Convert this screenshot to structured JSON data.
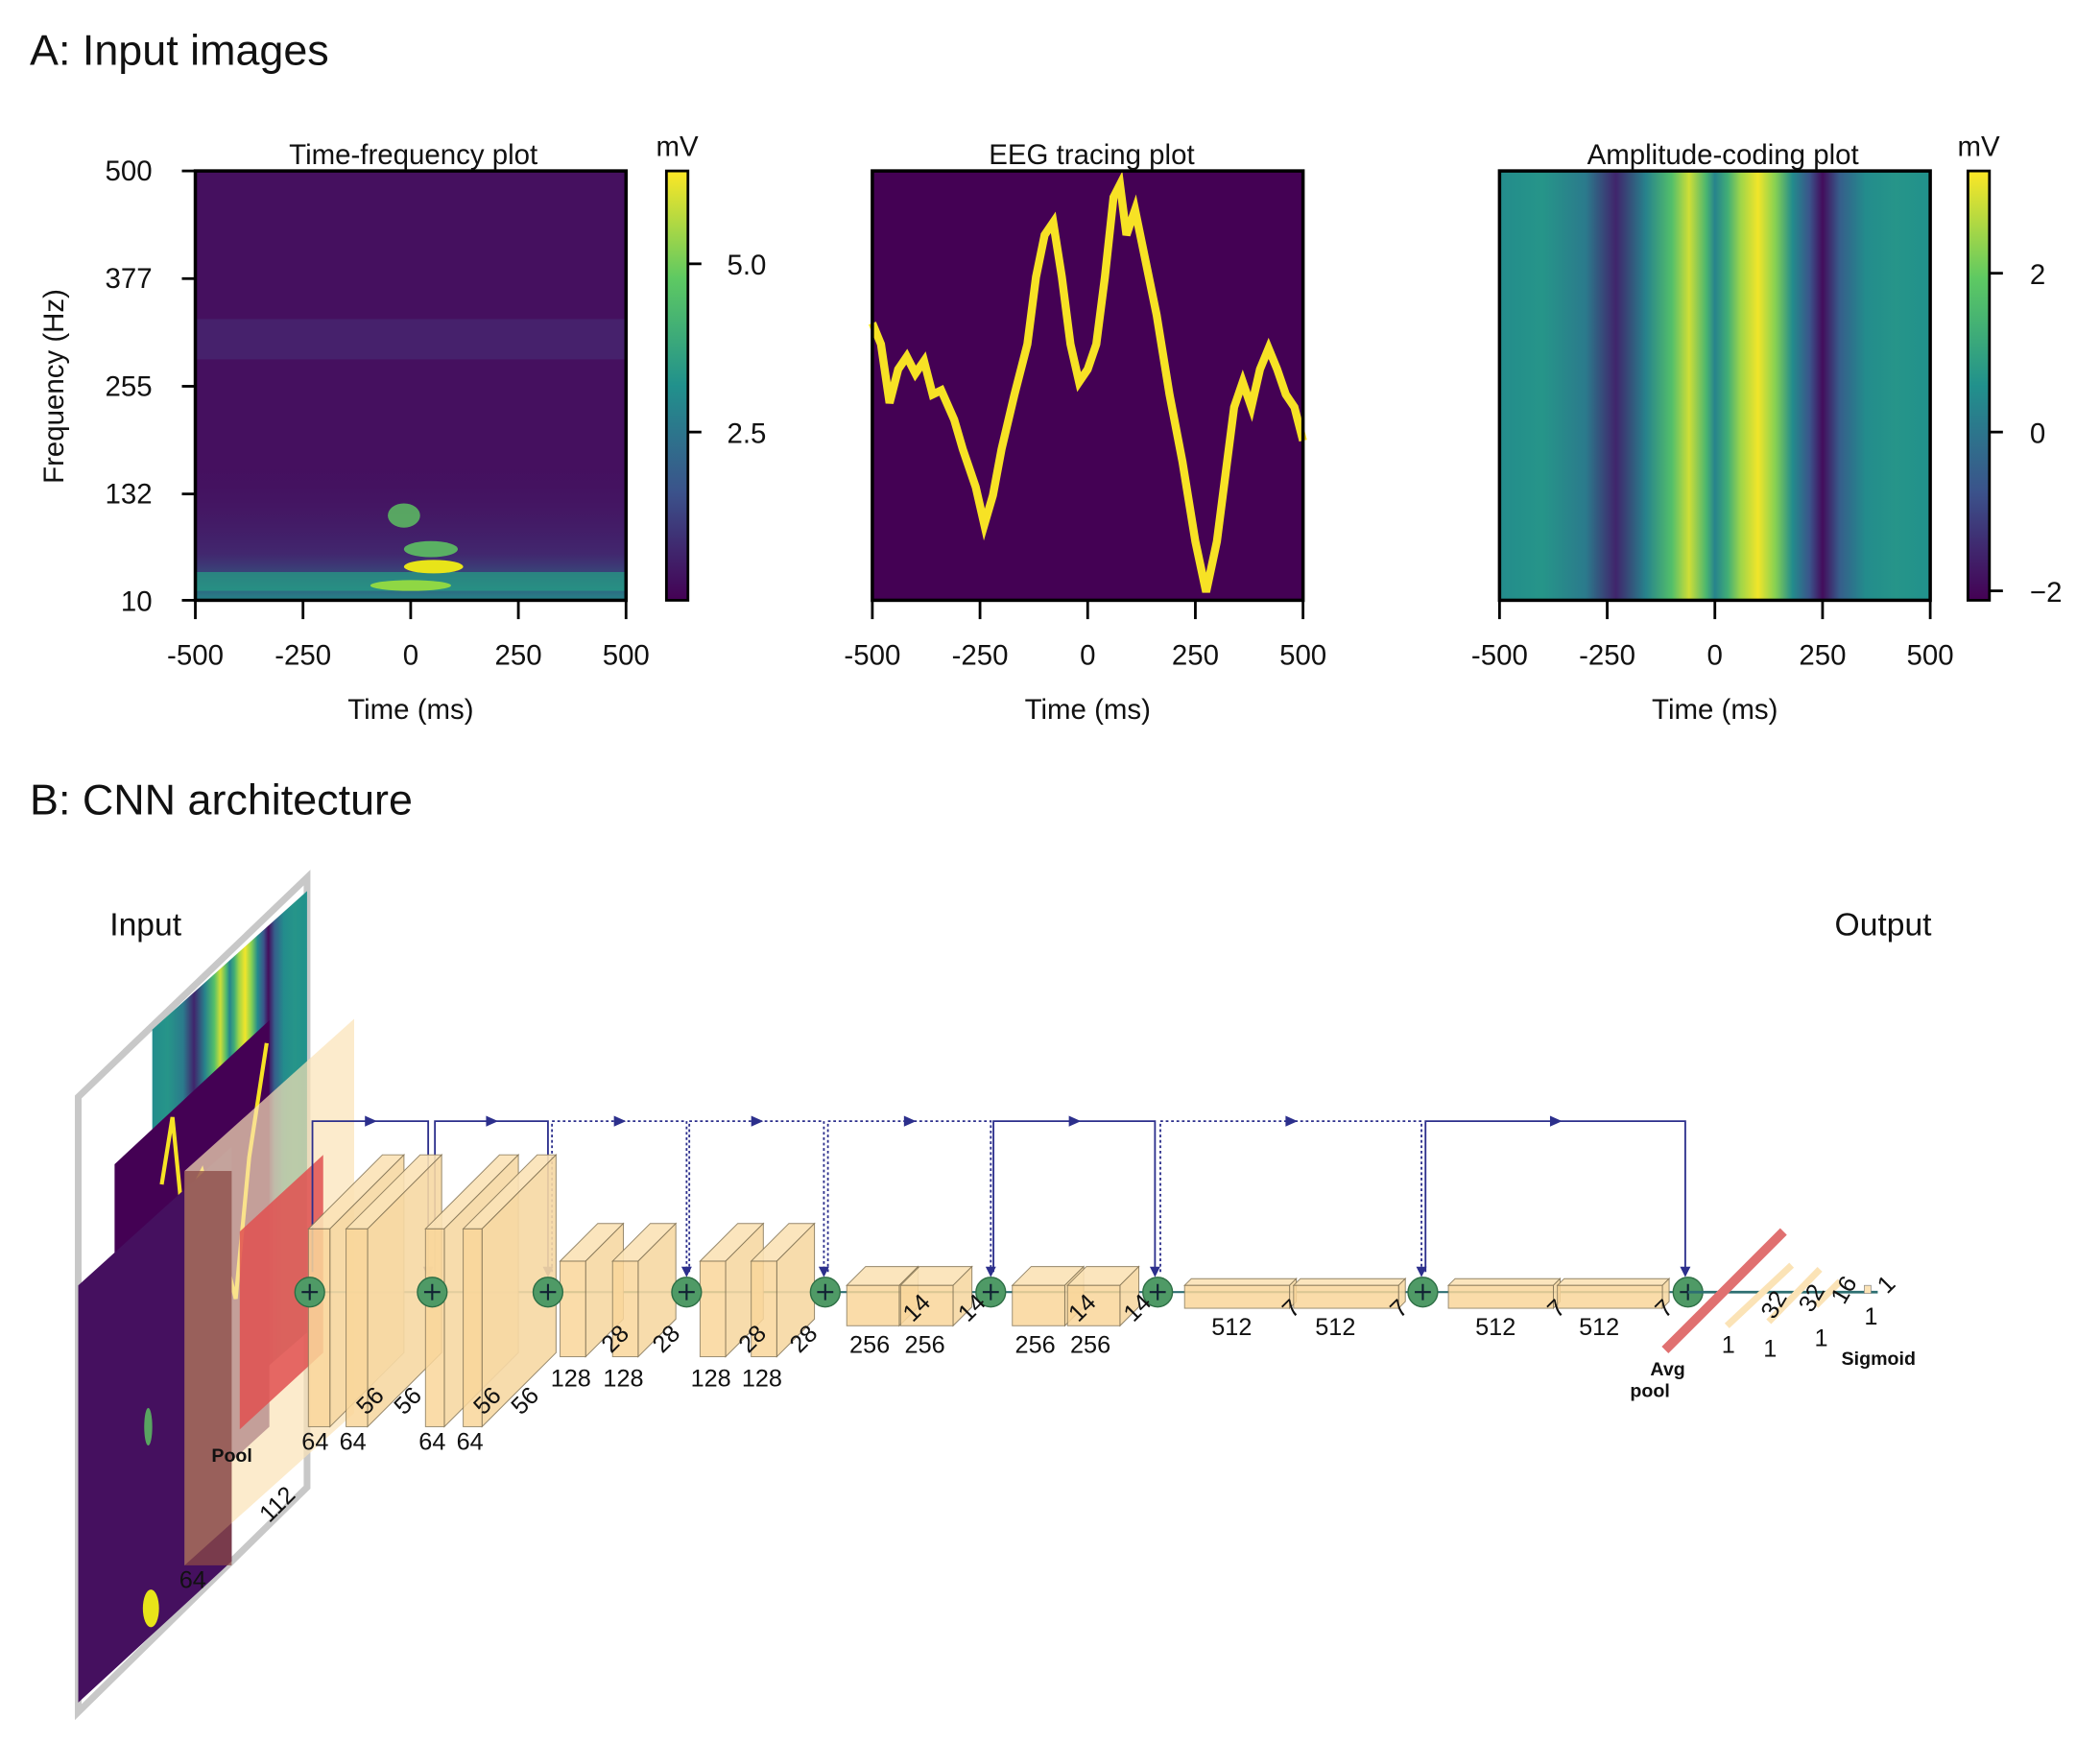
{
  "panel_a": {
    "title": "A: Input images",
    "plots": [
      {
        "title": "Time-frequency plot",
        "xlabel": "Time (ms)",
        "ylabel": "Frequency (Hz)",
        "xticks": [
          "-500",
          "-250",
          "0",
          "250",
          "500"
        ],
        "yticks": [
          "500",
          "377",
          "255",
          "132",
          "10"
        ],
        "colorbar": {
          "unit": "mV",
          "ticks": [
            "5.0",
            "2.5"
          ],
          "colormap": "viridis"
        }
      },
      {
        "title": "EEG tracing plot",
        "xlabel": "Time (ms)",
        "xticks": [
          "-500",
          "-250",
          "0",
          "250",
          "500"
        ],
        "line_color": "#f7e225",
        "background": "#440154"
      },
      {
        "title": "Amplitude-coding plot",
        "xlabel": "Time (ms)",
        "xticks": [
          "-500",
          "-250",
          "0",
          "250",
          "500"
        ],
        "colorbar": {
          "unit": "mV",
          "ticks": [
            "2",
            "0",
            "−2"
          ],
          "colormap": "viridis"
        }
      }
    ]
  },
  "chart_data": [
    {
      "type": "heatmap",
      "title": "Time-frequency plot",
      "xlabel": "Time (ms)",
      "ylabel": "Frequency (Hz)",
      "xlim": [
        -500,
        500
      ],
      "ylim": [
        10,
        500
      ],
      "color_range_mV": [
        0,
        6.3
      ],
      "note_hotspots": [
        {
          "time": 0,
          "freq": 40,
          "value": 6.0
        },
        {
          "time": 0,
          "freq": 110,
          "value": 4.2
        }
      ]
    },
    {
      "type": "line",
      "title": "EEG tracing plot",
      "xlabel": "Time (ms)",
      "xlim": [
        -500,
        500
      ],
      "x": [
        -500,
        -480,
        -460,
        -440,
        -420,
        -400,
        -380,
        -360,
        -340,
        -310,
        -290,
        -260,
        -240,
        -220,
        -200,
        -170,
        -140,
        -120,
        -100,
        -80,
        -60,
        -40,
        -20,
        0,
        20,
        40,
        60,
        75,
        90,
        110,
        130,
        160,
        190,
        220,
        250,
        275,
        300,
        320,
        340,
        360,
        380,
        400,
        420,
        440,
        460,
        480,
        500
      ],
      "y_relative": [
        0.66,
        0.61,
        0.47,
        0.55,
        0.58,
        0.54,
        0.57,
        0.49,
        0.5,
        0.43,
        0.36,
        0.27,
        0.18,
        0.25,
        0.36,
        0.49,
        0.61,
        0.77,
        0.87,
        0.9,
        0.77,
        0.61,
        0.52,
        0.55,
        0.61,
        0.77,
        0.96,
        0.99,
        0.87,
        0.93,
        0.83,
        0.68,
        0.49,
        0.33,
        0.14,
        0.02,
        0.14,
        0.3,
        0.46,
        0.52,
        0.46,
        0.55,
        0.6,
        0.55,
        0.49,
        0.46,
        0.38
      ]
    },
    {
      "type": "heatmap",
      "title": "Amplitude-coding plot",
      "xlabel": "Time (ms)",
      "xlim": [
        -500,
        500
      ],
      "color_range_mV": [
        -2.2,
        3.2
      ],
      "x": [
        -500,
        -400,
        -300,
        -230,
        -160,
        -100,
        -60,
        -20,
        0,
        30,
        60,
        100,
        140,
        180,
        220,
        250,
        290,
        350,
        420,
        500
      ],
      "amplitude_mV": [
        0.4,
        0.6,
        0.0,
        -1.6,
        0.2,
        1.6,
        2.8,
        1.4,
        0.2,
        1.2,
        2.4,
        3.1,
        2.2,
        0.4,
        -0.8,
        -2.0,
        -0.6,
        0.4,
        0.6,
        0.5
      ]
    }
  ],
  "panel_b": {
    "title": "B: CNN architecture",
    "input_label": "Input",
    "output_label": "Output",
    "pool_label": "Pool",
    "avg_label": "Avg",
    "avgpool_label": "pool",
    "sigmoid_label": "Sigmoid",
    "input_dims": [
      "112",
      "64"
    ],
    "stage1": [
      "64",
      "64",
      "56",
      "56",
      "64",
      "64",
      "56",
      "56"
    ],
    "stage2": [
      "128",
      "28",
      "128",
      "28",
      "128",
      "28",
      "128",
      "28"
    ],
    "stage3": [
      "256",
      "14",
      "256",
      "14",
      "256",
      "14",
      "256",
      "14"
    ],
    "stage4": [
      "512",
      "7",
      "512",
      "7",
      "512",
      "7",
      "512",
      "7"
    ],
    "fc": [
      "1",
      "32",
      "1",
      "32",
      "1",
      "16",
      "1",
      "1"
    ],
    "colors": {
      "block": "#fbe3b6",
      "conv": "#e05050",
      "pool": "#8b4a46",
      "adder": "#4f9a66",
      "skip": "#2c2f8c"
    }
  }
}
